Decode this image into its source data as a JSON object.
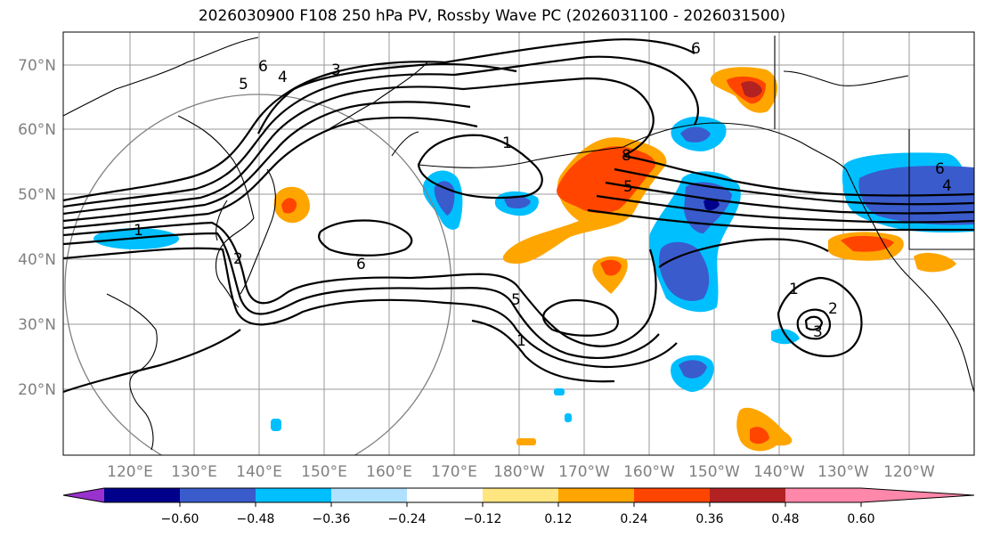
{
  "title": "2026030900 F108 250 hPa PV, Rossby Wave PC (2026031100 - 2026031500)",
  "lat_labels": [
    "70°N",
    "60°N",
    "50°N",
    "40°N",
    "30°N",
    "20°N"
  ],
  "lon_labels": [
    "120°E",
    "130°E",
    "140°E",
    "150°E",
    "160°E",
    "170°E",
    "180°W",
    "170°W",
    "160°W",
    "150°W",
    "140°W",
    "130°W",
    "120°W"
  ],
  "colorbar": {
    "ticks": [
      "−0.60",
      "−0.48",
      "−0.36",
      "−0.24",
      "−0.12",
      "0.12",
      "0.24",
      "0.36",
      "0.48",
      "0.60"
    ],
    "colors": [
      "#9932cc",
      "#00008b",
      "#3a5bcc",
      "#00bfff",
      "#b0e2ff",
      "#ffffff",
      "#ffe680",
      "#ffa500",
      "#ff4500",
      "#b22222",
      "#ff88aa"
    ]
  },
  "contour_labels": [
    "6",
    "5",
    "4",
    "3",
    "1",
    "2",
    "1",
    "8",
    "6",
    "5",
    "4",
    "6",
    "6",
    "5",
    "1",
    "2",
    "3",
    "1"
  ]
}
